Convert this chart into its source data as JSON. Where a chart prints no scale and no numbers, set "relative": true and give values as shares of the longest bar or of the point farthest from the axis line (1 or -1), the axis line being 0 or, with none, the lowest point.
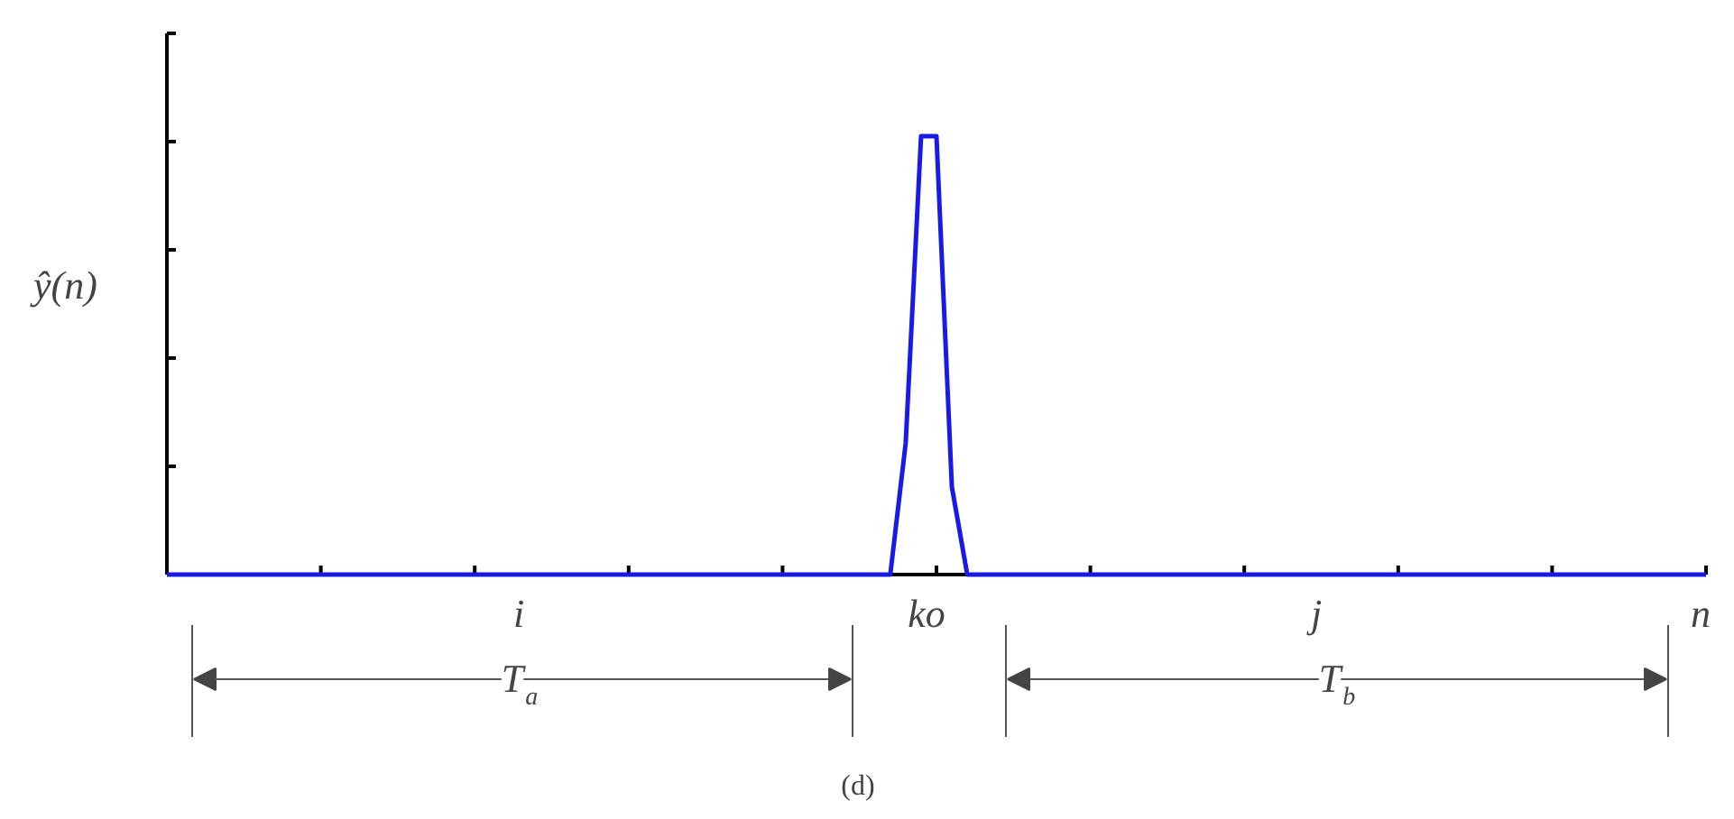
{
  "chart_data": {
    "type": "line",
    "relative": true,
    "ylabel": "ŷ(n)",
    "line_style": "solid",
    "categories": [
      null,
      null,
      null,
      null,
      null,
      null,
      null,
      null,
      null,
      null,
      null,
      null,
      null,
      null,
      null,
      null,
      null,
      null,
      null,
      null,
      null,
      null,
      null,
      null,
      null,
      null,
      null,
      null,
      null,
      null,
      null,
      null,
      null,
      null,
      null,
      null,
      null,
      null,
      null,
      null,
      null,
      null,
      null,
      null,
      null,
      null,
      null,
      null,
      null,
      null,
      null,
      null,
      null,
      null,
      null,
      null,
      null,
      null,
      null,
      null,
      null,
      null,
      null,
      null,
      null,
      null,
      null,
      null,
      null,
      null,
      null,
      null,
      null,
      null,
      null,
      null,
      null,
      null,
      null,
      null,
      null,
      null,
      null,
      null,
      null,
      null,
      null,
      null,
      null,
      null,
      null,
      null,
      null,
      null,
      null,
      null,
      null,
      null,
      null,
      null,
      null
    ],
    "series": [
      {
        "color": "#1a1ae6",
        "values": [
          0,
          0,
          0,
          0,
          0,
          0,
          0,
          0,
          0,
          0,
          0,
          0,
          0,
          0,
          0,
          0,
          0,
          0,
          0,
          0,
          0,
          0,
          0,
          0,
          0,
          0,
          0,
          0,
          0,
          0,
          0,
          0,
          0,
          0,
          0,
          0,
          0,
          0,
          0,
          0,
          0,
          0,
          0,
          0,
          0,
          0,
          0,
          0,
          0.3,
          1,
          1,
          0.2,
          0,
          0,
          0,
          0,
          0,
          0,
          0,
          0,
          0,
          0,
          0,
          0,
          0,
          0,
          0,
          0,
          0,
          0,
          0,
          0,
          0,
          0,
          0,
          0,
          0,
          0,
          0,
          0,
          0,
          0,
          0,
          0,
          0,
          0,
          0,
          0,
          0,
          0,
          0,
          0,
          0,
          0,
          0,
          0,
          0,
          0,
          0,
          0,
          0
        ]
      }
    ],
    "annotations": [
      "i",
      "ko",
      "j",
      "n",
      "T$_{a}$",
      "T$_{b}$",
      "(d)"
    ]
  }
}
